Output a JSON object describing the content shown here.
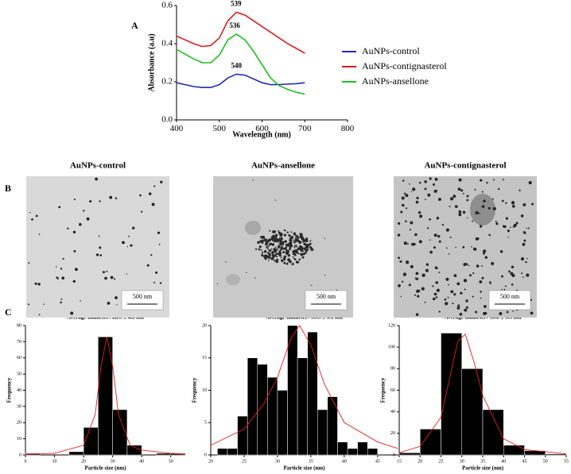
{
  "panel_labels": [
    "A",
    "B",
    "C"
  ],
  "chart_data": [
    {
      "type": "line",
      "xlabel": "Wavelength (nm)",
      "ylabel": "Absorbance (a.u)",
      "x": [
        400,
        420,
        440,
        460,
        480,
        500,
        520,
        540,
        560,
        580,
        600,
        620,
        640,
        660,
        680,
        700
      ],
      "series": [
        {
          "name": "AuNPs-control",
          "color": "#1f2bb0",
          "values": [
            0.195,
            0.185,
            0.175,
            0.17,
            0.17,
            0.185,
            0.22,
            0.24,
            0.235,
            0.215,
            0.195,
            0.185,
            0.185,
            0.188,
            0.19,
            0.195
          ]
        },
        {
          "name": "AuNPs-contignasterol",
          "color": "#d81e1e",
          "values": [
            0.44,
            0.42,
            0.4,
            0.385,
            0.39,
            0.43,
            0.52,
            0.565,
            0.55,
            0.52,
            0.49,
            0.46,
            0.43,
            0.4,
            0.375,
            0.35
          ]
        },
        {
          "name": "AuNPs-ansellone",
          "color": "#1fbf1f",
          "values": [
            0.37,
            0.345,
            0.32,
            0.3,
            0.3,
            0.34,
            0.42,
            0.45,
            0.42,
            0.36,
            0.29,
            0.22,
            0.18,
            0.16,
            0.145,
            0.135
          ]
        }
      ],
      "annotations": [
        {
          "label": "539",
          "x": 539,
          "y": 0.565
        },
        {
          "label": "536",
          "x": 536,
          "y": 0.45
        },
        {
          "label": "540",
          "x": 540,
          "y": 0.24
        }
      ],
      "xlim": [
        400,
        800
      ],
      "xticks": [
        400,
        500,
        600,
        700,
        800
      ],
      "ylim": [
        0,
        0.6
      ],
      "yticks": [
        {
          "value": 0,
          "label": "0.0"
        },
        0.2,
        0.4,
        0.6
      ],
      "legend": "right"
    },
    {
      "type": "histogram",
      "title": "AuNPs-control",
      "subtitle": "Average diameter: 28.3 ± 4.8 nm",
      "xlabel": "Particle size (nm)",
      "ylabel": "Frequency",
      "bins": [
        0,
        5,
        10,
        15,
        20,
        25,
        30,
        35,
        40,
        45,
        50,
        55
      ],
      "values": [
        1,
        0,
        0,
        2,
        17,
        73,
        28,
        6,
        0,
        1,
        1
      ],
      "color": "#000000",
      "fit": {
        "color": "#e02020",
        "x": [
          0,
          10,
          20,
          24,
          26,
          28,
          30,
          32,
          36,
          40,
          50,
          55
        ],
        "values": [
          0.5,
          1,
          6,
          25,
          55,
          73,
          55,
          25,
          6,
          3,
          1,
          0.5
        ]
      },
      "xlim": [
        0,
        55
      ],
      "xticks": [
        0,
        10,
        20,
        30,
        40,
        50
      ],
      "ylim": [
        0,
        80
      ],
      "yticks": [
        0,
        10,
        20,
        30,
        40,
        50,
        60,
        70,
        80
      ]
    },
    {
      "type": "histogram",
      "title": "AuNPs-ansellone",
      "subtitle": "Average diameter: 33.3 ± 5.1 nm",
      "xlabel": "Particle size (nm)",
      "ylabel": "Frequency",
      "bins": [
        21,
        22.5,
        24,
        25.5,
        27,
        28.5,
        30,
        31.5,
        33,
        34.5,
        36,
        37.5,
        39,
        40.5,
        42,
        43.5,
        45
      ],
      "values": [
        1,
        1,
        6,
        15,
        14,
        12,
        10,
        20,
        15,
        19,
        7,
        9,
        2,
        1,
        2,
        1
      ],
      "color": "#000000",
      "fit": {
        "color": "#e02020",
        "x": [
          20,
          25,
          28,
          30,
          32,
          33.3,
          35,
          37,
          40,
          45,
          48
        ],
        "values": [
          1.5,
          4,
          8,
          12,
          18,
          20,
          17,
          11,
          5,
          2,
          1
        ]
      },
      "xlim": [
        20,
        48
      ],
      "xticks": [
        20,
        25,
        30,
        35,
        40,
        45
      ],
      "ylim": [
        0,
        20
      ],
      "yticks": [
        0,
        5,
        10,
        15,
        20
      ]
    },
    {
      "type": "histogram",
      "title": "AuNPs-contignasterol",
      "subtitle": "Average diameter: 30.8 ± 5.5 nm",
      "xlabel": "Particle size (nm)",
      "ylabel": "Frequency",
      "bins": [
        15,
        20,
        25,
        30,
        35,
        40,
        45,
        50,
        55
      ],
      "values": [
        2,
        24,
        113,
        80,
        42,
        9,
        4,
        1
      ],
      "color": "#000000",
      "fit": {
        "color": "#e02020",
        "x": [
          15,
          20,
          25,
          27,
          29,
          30.8,
          33,
          35,
          40,
          45,
          55
        ],
        "values": [
          2,
          8,
          35,
          70,
          105,
          112,
          85,
          55,
          15,
          5,
          1
        ]
      },
      "xlim": [
        15,
        55
      ],
      "xticks": [
        15,
        20,
        25,
        30,
        35,
        40,
        45,
        50,
        55
      ],
      "ylim": [
        0,
        120
      ],
      "yticks": [
        0,
        20,
        40,
        60,
        80,
        100,
        120
      ]
    }
  ],
  "images": [
    {
      "title": "AuNPs-control",
      "scale_bar": "500 nm"
    },
    {
      "title": "AuNPs-ansellone",
      "scale_bar": "500 nm"
    },
    {
      "title": "AuNPs-contignasterol",
      "scale_bar": "500 nm"
    }
  ]
}
